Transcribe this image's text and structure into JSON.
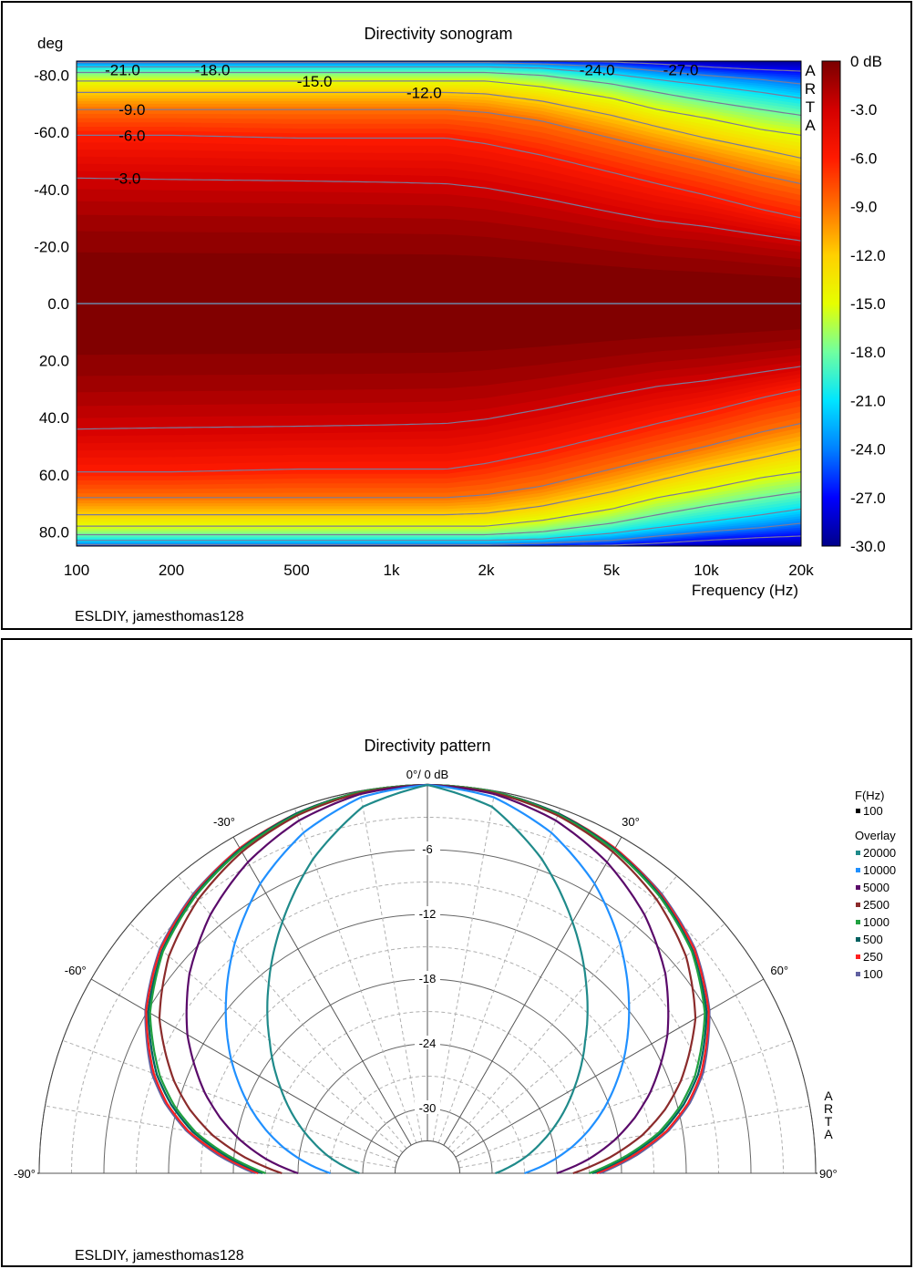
{
  "sonogram": {
    "title": "Directivity sonogram",
    "y_unit_label": "deg",
    "xlabel": "Frequency (Hz)",
    "brand": "ARTA",
    "credit": "ESLDIY, jamesthomas128",
    "chart_data": {
      "type": "heatmap",
      "x_scale": "log",
      "xlim": [
        100,
        20000
      ],
      "ylim": [
        -85,
        85
      ],
      "x_ticks": [
        {
          "value": 100,
          "label": "100"
        },
        {
          "value": 200,
          "label": "200"
        },
        {
          "value": 500,
          "label": "500"
        },
        {
          "value": 1000,
          "label": "1k"
        },
        {
          "value": 2000,
          "label": "2k"
        },
        {
          "value": 5000,
          "label": "5k"
        },
        {
          "value": 10000,
          "label": "10k"
        },
        {
          "value": 20000,
          "label": "20k"
        }
      ],
      "y_ticks": [
        {
          "value": -80,
          "label": "-80.0"
        },
        {
          "value": -60,
          "label": "-60.0"
        },
        {
          "value": -40,
          "label": "-40.0"
        },
        {
          "value": -20,
          "label": "-20.0"
        },
        {
          "value": 0,
          "label": "0.0"
        },
        {
          "value": 20,
          "label": "20.0"
        },
        {
          "value": 40,
          "label": "40.0"
        },
        {
          "value": 60,
          "label": "60.0"
        },
        {
          "value": 80,
          "label": "80.0"
        }
      ],
      "colorbar": {
        "range": [
          -30,
          0
        ],
        "ticks": [
          {
            "value": 0,
            "label": "0 dB"
          },
          {
            "value": -3,
            "label": "-3.0"
          },
          {
            "value": -6,
            "label": "-6.0"
          },
          {
            "value": -9,
            "label": "-9.0"
          },
          {
            "value": -12,
            "label": "-12.0"
          },
          {
            "value": -15,
            "label": "-15.0"
          },
          {
            "value": -18,
            "label": "-18.0"
          },
          {
            "value": -21,
            "label": "-21.0"
          },
          {
            "value": -24,
            "label": "-24.0"
          },
          {
            "value": -27,
            "label": "-27.0"
          },
          {
            "value": -30,
            "label": "-30.0"
          }
        ],
        "colors": [
          "#00008a",
          "#0000ff",
          "#0080ff",
          "#00e5ff",
          "#70ffa0",
          "#e6ff00",
          "#ffd000",
          "#ff7000",
          "#ff1a00",
          "#d40000",
          "#7a0000"
        ]
      },
      "contour_levels_db": [
        -3,
        -6,
        -9,
        -12,
        -15,
        -18,
        -21,
        -24,
        -27
      ],
      "contour_freqs_hz": [
        100,
        200,
        500,
        1000,
        1500,
        2000,
        3000,
        5000,
        7000,
        10000,
        15000,
        20000
      ],
      "contour_angles_deg": {
        "-3": [
          44,
          43.5,
          43,
          42.5,
          42,
          40.5,
          37,
          32,
          29,
          27,
          24,
          22
        ],
        "-6": [
          59,
          59,
          58,
          58,
          58,
          56,
          52,
          46,
          42,
          38,
          33,
          30
        ],
        "-9": [
          68,
          68,
          68,
          68,
          68,
          67,
          64,
          58,
          54,
          50,
          45,
          42
        ],
        "-12": [
          74,
          74,
          74,
          74,
          74,
          73.5,
          71,
          66,
          62,
          58,
          54,
          51
        ],
        "-15": [
          78,
          78,
          78,
          78,
          78,
          78,
          76,
          72,
          68,
          65,
          61,
          59
        ],
        "-18": [
          81,
          81,
          81,
          81,
          81,
          81,
          80,
          77,
          74,
          71,
          68,
          66
        ],
        "-21": [
          83,
          83,
          83,
          83,
          83,
          83,
          82.5,
          80.5,
          78.5,
          76.5,
          74,
          72
        ],
        "-24": [
          84.5,
          84.5,
          84.5,
          84.5,
          84.5,
          84.5,
          84,
          83,
          81.5,
          80,
          78.5,
          77
        ],
        "-27": [
          85,
          85,
          85,
          85,
          85,
          85,
          85,
          84.7,
          84,
          83,
          82,
          81.5
        ]
      },
      "contour_labels": [
        {
          "text": "-21.0",
          "freq": 140,
          "angle": -82
        },
        {
          "text": "-18.0",
          "freq": 270,
          "angle": -82
        },
        {
          "text": "-15.0",
          "freq": 570,
          "angle": -78
        },
        {
          "text": "-12.0",
          "freq": 1270,
          "angle": -74
        },
        {
          "text": "-9.0",
          "freq": 150,
          "angle": -68
        },
        {
          "text": "-6.0",
          "freq": 150,
          "angle": -59
        },
        {
          "text": "-3.0",
          "freq": 145,
          "angle": -44
        },
        {
          "text": "-24.0",
          "freq": 4500,
          "angle": -82
        },
        {
          "text": "-27.0",
          "freq": 8300,
          "angle": -82
        }
      ]
    }
  },
  "polar": {
    "title": "Directivity pattern",
    "top_label": "0°/ 0 dB",
    "brand": "ARTA",
    "credit": "ESLDIY, jamesthomas128",
    "chart_data": {
      "type": "polar",
      "angle_range": [
        -90,
        90
      ],
      "radial_range_db": [
        -36,
        0
      ],
      "angle_labels": [
        {
          "value": -90,
          "label": "-90°"
        },
        {
          "value": -60,
          "label": "-60°"
        },
        {
          "value": -30,
          "label": "-30°"
        },
        {
          "value": 30,
          "label": "30°"
        },
        {
          "value": 60,
          "label": "60°"
        },
        {
          "value": 90,
          "label": "90°"
        }
      ],
      "radial_labels": [
        {
          "value": -6,
          "label": "-6"
        },
        {
          "value": -12,
          "label": "-12"
        },
        {
          "value": -18,
          "label": "-18"
        },
        {
          "value": -24,
          "label": "-24"
        },
        {
          "value": -30,
          "label": "-30"
        }
      ],
      "legend": {
        "header": "F(Hz)",
        "current": {
          "label": "100",
          "color": "#000000"
        },
        "overlay_header": "Overlay",
        "position": "right"
      },
      "series_angles_deg": [
        0,
        10,
        20,
        30,
        40,
        50,
        60,
        70,
        75,
        80,
        85,
        90
      ],
      "series": [
        {
          "name": "100",
          "color": "#6060a0",
          "db": [
            0,
            -0.1,
            -0.5,
            -1.2,
            -2.2,
            -3.6,
            -5.8,
            -8.8,
            -10.8,
            -13.3,
            -16.5,
            -20
          ]
        },
        {
          "name": "250",
          "color": "#ff2020",
          "db": [
            0,
            -0.1,
            -0.5,
            -1.2,
            -2.3,
            -3.7,
            -5.9,
            -9,
            -11,
            -13.5,
            -16.8,
            -20.3
          ]
        },
        {
          "name": "500",
          "color": "#006060",
          "db": [
            0,
            -0.1,
            -0.5,
            -1.3,
            -2.4,
            -3.9,
            -6.1,
            -9.3,
            -11.4,
            -13.9,
            -17.2,
            -20.7
          ]
        },
        {
          "name": "1000",
          "color": "#20a040",
          "db": [
            0,
            -0.1,
            -0.6,
            -1.4,
            -2.5,
            -4,
            -6.3,
            -9.6,
            -11.7,
            -14.2,
            -17.5,
            -21
          ]
        },
        {
          "name": "2500",
          "color": "#8b2b2b",
          "db": [
            0,
            -0.2,
            -0.7,
            -1.6,
            -2.9,
            -4.7,
            -7.3,
            -11,
            -13.2,
            -15.8,
            -19,
            -22.5
          ]
        },
        {
          "name": "5000",
          "color": "#5a0a6a",
          "db": [
            0,
            -0.3,
            -1.2,
            -2.7,
            -4.7,
            -7.2,
            -10.3,
            -14,
            -16.1,
            -18.4,
            -21,
            -24
          ]
        },
        {
          "name": "10000",
          "color": "#2090ff",
          "db": [
            0,
            -0.6,
            -2.4,
            -5,
            -8.2,
            -11.6,
            -15,
            -18.6,
            -20.5,
            -22.5,
            -24.7,
            -27
          ]
        },
        {
          "name": "20000",
          "color": "#1f8a8a",
          "db": [
            0,
            -1.5,
            -5,
            -9.1,
            -13.1,
            -16.9,
            -20.3,
            -23.5,
            -25.1,
            -26.6,
            -28.2,
            -29.7
          ]
        }
      ]
    }
  }
}
